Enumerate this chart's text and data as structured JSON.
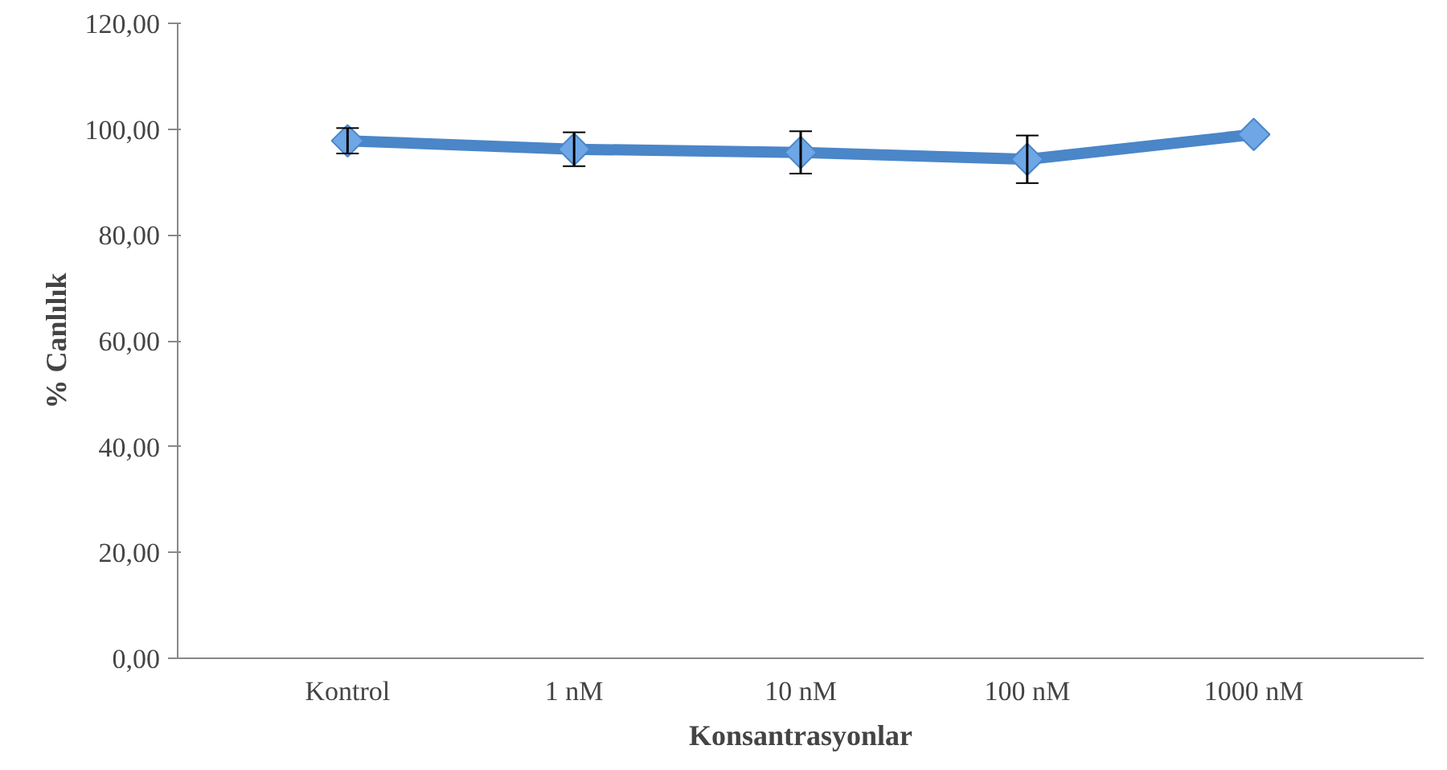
{
  "chart_data": {
    "type": "line",
    "xlabel": "Konsantrasyonlar",
    "ylabel": "% Canlılık",
    "categories": [
      "Kontrol",
      "1 nM",
      "10 nM",
      "100 nM",
      "1000 nM"
    ],
    "series": [
      {
        "color": "#4a86c8",
        "values": [
          97.8,
          96.2,
          95.6,
          94.3,
          99.0
        ],
        "errors": [
          2.4,
          3.2,
          4.0,
          4.5,
          null
        ]
      }
    ],
    "ylim": [
      0,
      120
    ],
    "yticks": [
      {
        "value": 0,
        "label": "0,00"
      },
      {
        "value": 20,
        "label": "20,00"
      },
      {
        "value": 40,
        "label": "40,00"
      },
      {
        "value": 60,
        "label": "60,00"
      },
      {
        "value": 80,
        "label": "80,00"
      },
      {
        "value": 100,
        "label": "100,00"
      },
      {
        "value": 120,
        "label": "120,00"
      }
    ],
    "grid": false,
    "marker": "diamond",
    "line_style": "solid"
  }
}
